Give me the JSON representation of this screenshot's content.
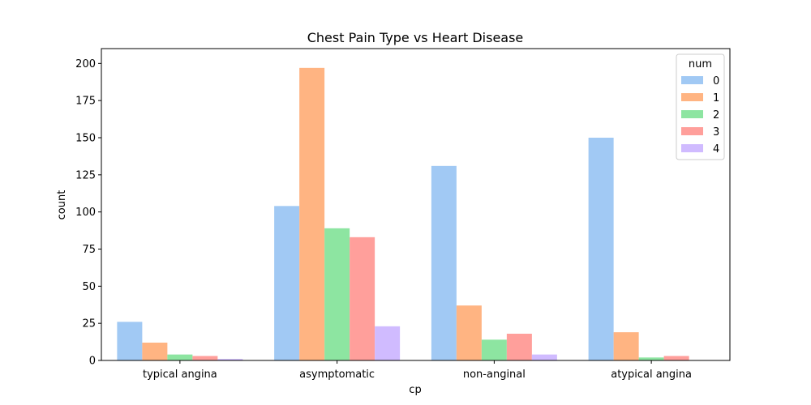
{
  "chart_data": {
    "type": "bar",
    "title": "Chest Pain Type vs Heart Disease",
    "xlabel": "cp",
    "ylabel": "count",
    "categories": [
      "typical angina",
      "asymptomatic",
      "non-anginal",
      "atypical angina"
    ],
    "ylim": [
      0,
      210
    ],
    "yticks": [
      0,
      25,
      50,
      75,
      100,
      125,
      150,
      175,
      200
    ],
    "legend": {
      "title": "num",
      "placement": "top-right"
    },
    "series": [
      {
        "name": "0",
        "color": "#a1c9f4",
        "values": [
          26,
          104,
          131,
          150
        ]
      },
      {
        "name": "1",
        "color": "#ffb482",
        "values": [
          12,
          197,
          37,
          19
        ]
      },
      {
        "name": "2",
        "color": "#8de5a1",
        "values": [
          4,
          89,
          14,
          2
        ]
      },
      {
        "name": "3",
        "color": "#ff9f9b",
        "values": [
          3,
          83,
          18,
          3
        ]
      },
      {
        "name": "4",
        "color": "#d0bbff",
        "values": [
          1,
          23,
          4,
          0
        ]
      }
    ],
    "grid": false
  }
}
